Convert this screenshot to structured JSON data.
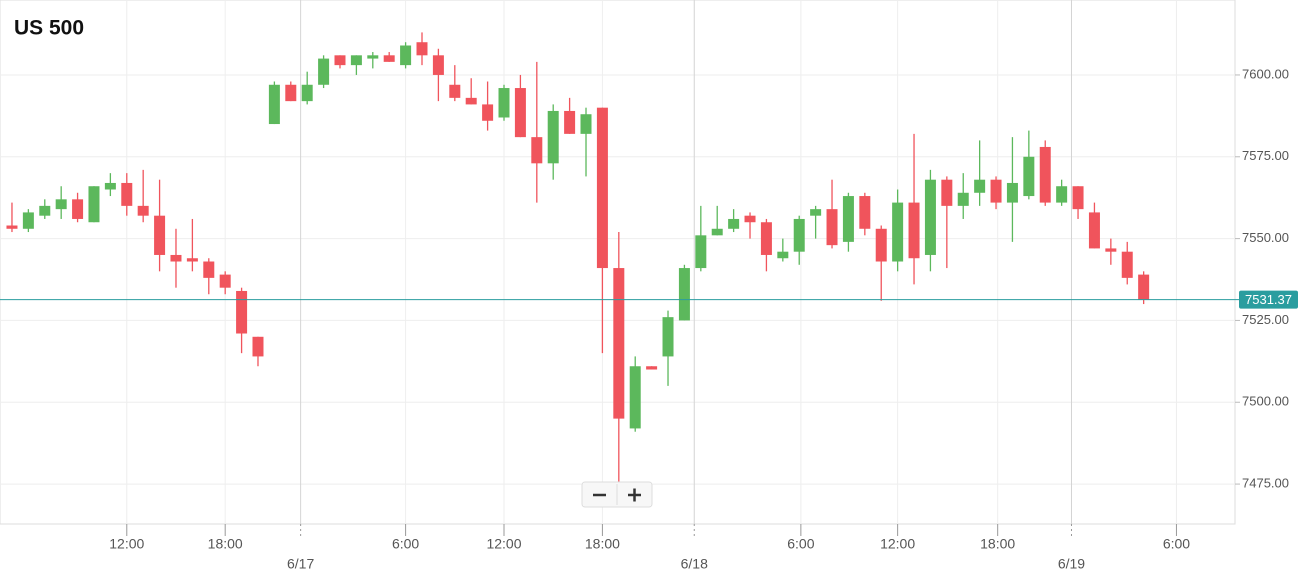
{
  "chart_data": {
    "type": "candlestick",
    "title": "US 500",
    "open": [
      7554,
      7553,
      7557,
      7559,
      7562,
      7555,
      7565,
      7567,
      7560,
      7557,
      7545,
      7544,
      7543,
      7539,
      7534,
      7520,
      7585,
      7597,
      7592,
      7597,
      7606,
      7603,
      7605,
      7606,
      7603,
      7610,
      7606,
      7597,
      7593,
      7591,
      7587,
      7596,
      7581,
      7573,
      7589,
      7582,
      7590,
      7541,
      7492,
      7511,
      7514,
      7525,
      7541,
      7551,
      7553,
      7557,
      7555,
      7544,
      7546,
      7557,
      7559,
      7549,
      7563,
      7553,
      7543,
      7561,
      7545,
      7568,
      7560,
      7564,
      7568,
      7561,
      7563,
      7578,
      7561,
      7566,
      7558,
      7547,
      7546,
      7539
    ],
    "high": [
      7561,
      7559,
      7562,
      7566,
      7564,
      7566,
      7570,
      7570,
      7571,
      7568,
      7553,
      7556,
      7544,
      7540,
      7535,
      7520,
      7598,
      7598,
      7601,
      7606,
      7606,
      7606,
      7607,
      7607,
      7610,
      7613,
      7608,
      7603,
      7599,
      7598,
      7597,
      7600,
      7604,
      7591,
      7593,
      7590,
      7590,
      7552,
      7514,
      7511,
      7528,
      7542,
      7560,
      7560,
      7559,
      7558,
      7556,
      7550,
      7557,
      7560,
      7568,
      7564,
      7564,
      7554,
      7565,
      7582,
      7571,
      7569,
      7570,
      7580,
      7569,
      7581,
      7583,
      7580,
      7568,
      7566,
      7561,
      7550,
      7549,
      7540
    ],
    "low": [
      7552,
      7552,
      7556,
      7556,
      7555,
      7555,
      7563,
      7557,
      7555,
      7540,
      7535,
      7540,
      7533,
      7533,
      7515,
      7511,
      7585,
      7592,
      7591,
      7596,
      7602,
      7600,
      7602,
      7604,
      7602,
      7603,
      7592,
      7592,
      7591,
      7583,
      7586,
      7581,
      7561,
      7568,
      7582,
      7569,
      7515,
      7475,
      7491,
      7510,
      7505,
      7525,
      7540,
      7551,
      7552,
      7550,
      7540,
      7543,
      7542,
      7550,
      7547,
      7546,
      7551,
      7531,
      7540,
      7536,
      7540,
      7541,
      7556,
      7560,
      7559,
      7549,
      7562,
      7560,
      7560,
      7556,
      7547,
      7542,
      7536,
      7530
    ],
    "close": [
      7553,
      7558,
      7560,
      7562,
      7556,
      7566,
      7567,
      7560,
      7557,
      7545,
      7543,
      7543,
      7538,
      7535,
      7521,
      7514,
      7597,
      7592,
      7597,
      7605,
      7603,
      7606,
      7606,
      7604,
      7609,
      7606,
      7600,
      7593,
      7591,
      7586,
      7596,
      7581,
      7573,
      7589,
      7582,
      7588,
      7541,
      7495,
      7511,
      7510,
      7526,
      7541,
      7551,
      7553,
      7556,
      7555,
      7545,
      7546,
      7556,
      7559,
      7548,
      7563,
      7553,
      7543,
      7561,
      7544,
      7568,
      7560,
      7564,
      7568,
      7561,
      7567,
      7575,
      7561,
      7566,
      7559,
      7547,
      7546,
      7538,
      7531.37
    ],
    "up_color": "#5cb85c",
    "down_color": "#f0545c",
    "last_price": 7531.37,
    "last_price_color": "#2a9d9f",
    "xlim": [
      -0.73,
      74.57
    ],
    "xticks": [
      {
        "value": 7,
        "label": "12:00"
      },
      {
        "value": 13,
        "label": "18:00"
      },
      {
        "value": 17.6,
        "label": "6/17"
      },
      {
        "value": 24,
        "label": "6:00"
      },
      {
        "value": 30,
        "label": "12:00"
      },
      {
        "value": 36,
        "label": "18:00"
      },
      {
        "value": 41.6,
        "label": "6/18"
      },
      {
        "value": 48.1,
        "label": "6:00"
      },
      {
        "value": 54,
        "label": "12:00"
      },
      {
        "value": 60.1,
        "label": "18:00"
      },
      {
        "value": 64.6,
        "label": "6/19"
      },
      {
        "value": 71,
        "label": "6:00"
      }
    ],
    "ylim": [
      7462.8,
      7622.9
    ],
    "yticks": [
      {
        "value": 7475,
        "label": "7475.00"
      },
      {
        "value": 7500,
        "label": "7500.00"
      },
      {
        "value": 7525,
        "label": "7525.00"
      },
      {
        "value": 7550,
        "label": "7550.00"
      },
      {
        "value": 7575,
        "label": "7575.00"
      },
      {
        "value": 7600,
        "label": "7600.00"
      }
    ],
    "grid": true
  }
}
